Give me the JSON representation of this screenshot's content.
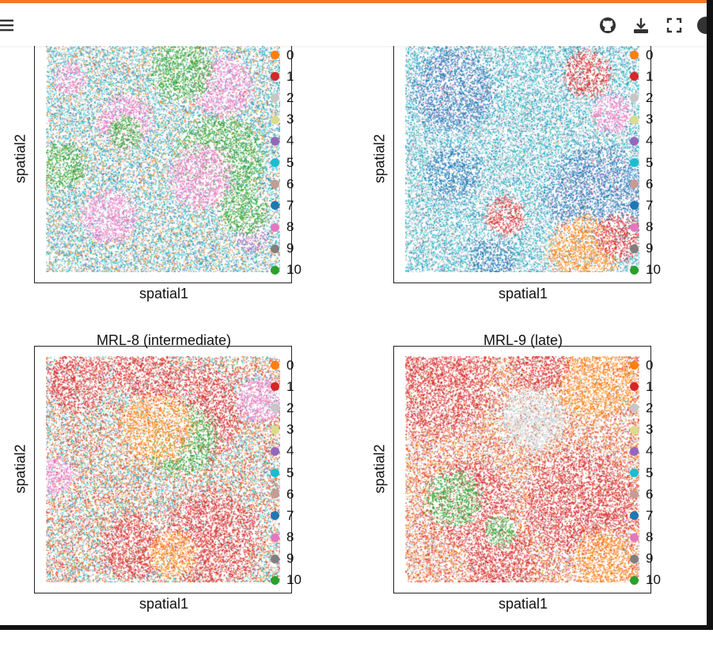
{
  "header": {
    "icons": [
      "menu-icon",
      "github-icon",
      "download-icon",
      "fullscreen-icon",
      "theme-toggle-icon"
    ],
    "accent": "#f37726"
  },
  "legend": {
    "items": [
      {
        "label": "0",
        "color": "#ff7f0e"
      },
      {
        "label": "1",
        "color": "#d62728"
      },
      {
        "label": "2",
        "color": "#c7c7c7"
      },
      {
        "label": "3",
        "color": "#dbdb8d"
      },
      {
        "label": "4",
        "color": "#9467bd"
      },
      {
        "label": "5",
        "color": "#17becf"
      },
      {
        "label": "6",
        "color": "#c49c94"
      },
      {
        "label": "7",
        "color": "#1f77b4"
      },
      {
        "label": "8",
        "color": "#e377c2"
      },
      {
        "label": "9",
        "color": "#7f7f7f"
      },
      {
        "label": "10",
        "color": "#2ca02c"
      }
    ]
  },
  "panels": [
    {
      "title": "",
      "xlabel": "spatial1",
      "ylabel": "spatial2"
    },
    {
      "title": "",
      "xlabel": "spatial1",
      "ylabel": "spatial2"
    },
    {
      "title": "MRL-8 (intermediate)",
      "xlabel": "spatial1",
      "ylabel": "spatial2"
    },
    {
      "title": "MRL-9 (late)",
      "xlabel": "spatial1",
      "ylabel": "spatial2"
    }
  ]
}
